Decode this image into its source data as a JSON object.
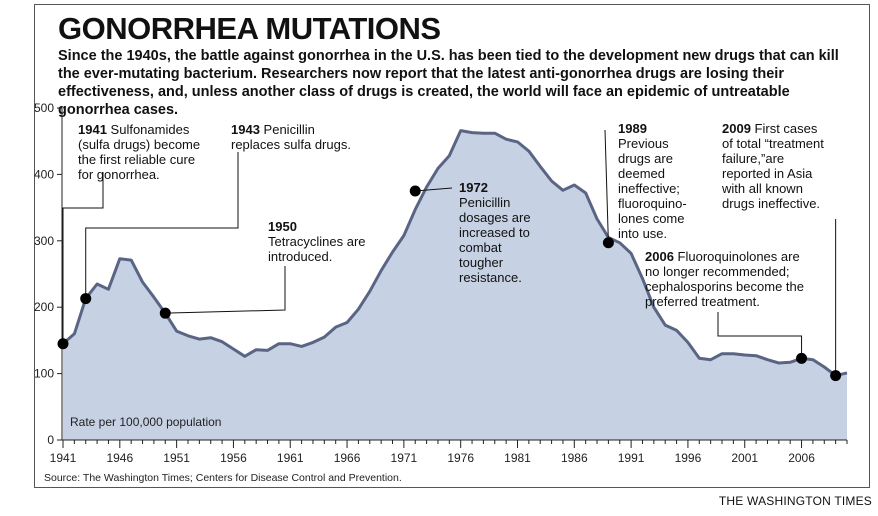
{
  "title": "GONORRHEA MUTATIONS",
  "subtitle": "Since the 1940s, the battle against gonorrhea in the U.S. has been tied to the development new drugs that can kill the ever-mutating bacterium. Researchers now report that the latest anti-gonorrhea drugs are losing their effectiveness, and, unless another class of drugs is created, the world will face an epidemic of untreatable gonorrhea cases.",
  "source": "Source: The Washington Times; Centers for Disease Control and Prevention.",
  "credit": "THE WASHINGTON TIMES",
  "colors": {
    "area": "#c6d2e3",
    "line": "#5a6585",
    "dot": "#000000"
  },
  "chart_data": {
    "type": "area",
    "ylabel": "Rate per 100,000 population",
    "ylim": [
      0,
      500
    ],
    "yticks": [
      0,
      100,
      200,
      300,
      400,
      500
    ],
    "xlim": [
      1941,
      2010
    ],
    "xticks": [
      1941,
      1946,
      1951,
      1956,
      1961,
      1966,
      1971,
      1976,
      1981,
      1986,
      1991,
      1996,
      2001,
      2006
    ],
    "grid": false,
    "series": [
      {
        "x": [
          1941,
          1942,
          1943,
          1944,
          1945,
          1946,
          1947,
          1948,
          1949,
          1950,
          1951,
          1952,
          1953,
          1954,
          1955,
          1956,
          1957,
          1958,
          1959,
          1960,
          1961,
          1962,
          1963,
          1964,
          1965,
          1966,
          1967,
          1968,
          1969,
          1970,
          1971,
          1972,
          1973,
          1974,
          1975,
          1976,
          1977,
          1978,
          1979,
          1980,
          1981,
          1982,
          1983,
          1984,
          1985,
          1986,
          1987,
          1988,
          1989,
          1990,
          1991,
          1992,
          1993,
          1994,
          1995,
          1996,
          1997,
          1998,
          1999,
          2000,
          2001,
          2002,
          2003,
          2004,
          2005,
          2006,
          2007,
          2008,
          2009,
          2010
        ],
        "y": [
          145,
          160,
          213,
          235,
          227,
          273,
          271,
          238,
          215,
          191,
          164,
          157,
          152,
          154,
          148,
          137,
          126,
          136,
          135,
          145,
          145,
          141,
          147,
          155,
          170,
          177,
          197,
          224,
          255,
          283,
          308,
          347,
          381,
          409,
          428,
          466,
          463,
          462,
          462,
          453,
          449,
          435,
          412,
          390,
          376,
          384,
          372,
          333,
          305,
          297,
          281,
          243,
          200,
          173,
          165,
          147,
          123,
          121,
          130,
          130,
          128,
          127,
          121,
          116,
          117,
          123,
          121,
          110,
          97,
          101
        ]
      }
    ],
    "annotations": [
      {
        "year": "1941",
        "text": [
          "Sulfonamides",
          "(sulfa drugs) become",
          "the first reliable cure",
          "for gonorrhea."
        ]
      },
      {
        "year": "1943",
        "text": [
          "Penicillin",
          "replaces sulfa drugs."
        ]
      },
      {
        "year": "1950",
        "text": [
          "Tetracyclines are",
          "introduced."
        ]
      },
      {
        "year": "1972",
        "text": [
          "Penicillin",
          "dosages are",
          "increased to",
          "combat",
          "tougher",
          "resistance."
        ]
      },
      {
        "year": "1989",
        "text": [
          "Previous",
          "drugs are",
          "deemed",
          "ineffective;",
          "fluoroquino-",
          "lones come",
          "into use."
        ]
      },
      {
        "year": "2006",
        "text": [
          "Fluoroquinolones are",
          "no longer recommended;",
          "cephalosporins become the",
          "preferred treatment."
        ]
      },
      {
        "year": "2009",
        "text": [
          "First cases",
          "of total “treatment",
          "failure,”are",
          "reported in Asia",
          "with all known",
          "drugs ineffective."
        ]
      }
    ],
    "markers": [
      {
        "x": 1941,
        "y": 145
      },
      {
        "x": 1943,
        "y": 213
      },
      {
        "x": 1950,
        "y": 191
      },
      {
        "x": 1972,
        "y": 375
      },
      {
        "x": 1989,
        "y": 297
      },
      {
        "x": 2006,
        "y": 123
      },
      {
        "x": 2009,
        "y": 97
      }
    ]
  }
}
